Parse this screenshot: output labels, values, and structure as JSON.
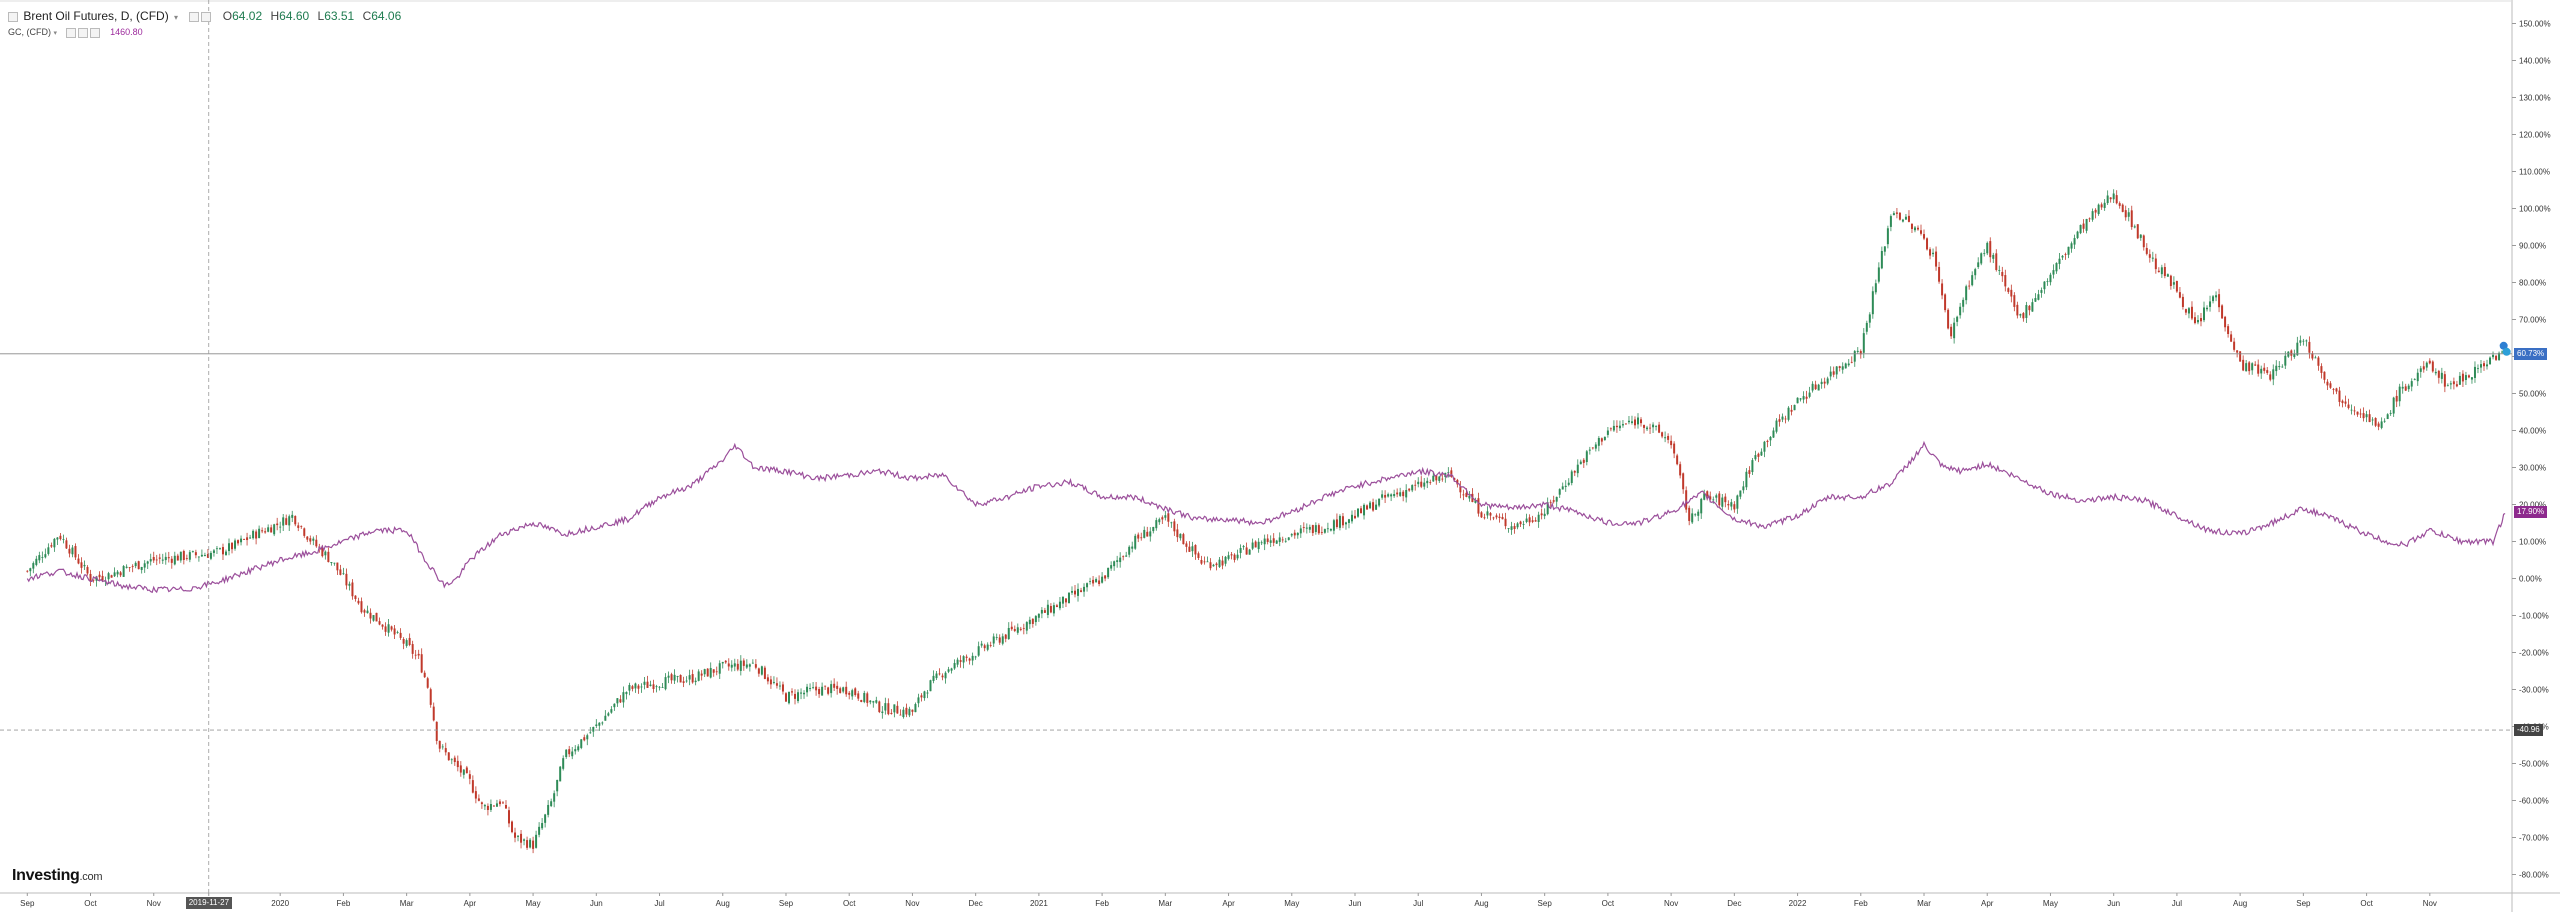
{
  "legend": {
    "title": "Brent Oil Futures, D, (CFD)",
    "open_label": "O",
    "open": "64.02",
    "high_label": "H",
    "high": "64.60",
    "low_label": "L",
    "low": "63.51",
    "close_label": "C",
    "close": "64.06",
    "secondary": "GC, (CFD)",
    "secondary_value": "1460.80",
    "dropdown_icon": "chevron-down-icon"
  },
  "branding": {
    "logo_text": "Investing",
    "logo_domain": ".com"
  },
  "colors": {
    "up": "#2e8b57",
    "down": "#c0392b",
    "compare": "#9b4f9b",
    "crosshair": "#999999",
    "badge_blue": "#3a6fc4",
    "badge_purple": "#8e2a8e",
    "badge_dark": "#444444"
  },
  "badges": {
    "brent_pct": "60.73%",
    "gc_pct": "17.90%",
    "crosshair_pct": "-40.96",
    "crosshair_date": "2019-11-27"
  },
  "chart_data": {
    "type": "line",
    "title": "Brent Oil Futures, D, (CFD)",
    "y_unit": "%",
    "ylim": [
      -85,
      155
    ],
    "y_ticks": [
      150,
      140,
      130,
      120,
      110,
      100,
      90,
      80,
      70,
      60,
      50,
      40,
      30,
      20,
      10,
      0,
      -10,
      -20,
      -30,
      -40,
      -50,
      -60,
      -70,
      -80
    ],
    "x_labels": [
      "Sep",
      "Oct",
      "Nov",
      "2019-11-27",
      "2020",
      "Feb",
      "Mar",
      "Apr",
      "May",
      "Jun",
      "Jul",
      "Aug",
      "Sep",
      "Oct",
      "Nov",
      "Dec",
      "2021",
      "Feb",
      "Mar",
      "Apr",
      "May",
      "Jun",
      "Jul",
      "Aug",
      "Sep",
      "Oct",
      "Nov",
      "Dec",
      "2022",
      "Feb",
      "Mar",
      "Apr",
      "May",
      "Jun",
      "Jul",
      "Aug",
      "Sep",
      "Oct",
      "Nov"
    ],
    "x_label_months": [
      0,
      1,
      2,
      2.87,
      4,
      5,
      6,
      7,
      8,
      9,
      10,
      11,
      12,
      13,
      14,
      15,
      16,
      17,
      18,
      19,
      20,
      21,
      22,
      23,
      24,
      25,
      26,
      27,
      28,
      29,
      30,
      31,
      32,
      33,
      34,
      35,
      36,
      37,
      38
    ],
    "x_months_range": [
      -0.4,
      39.3
    ],
    "grid": false,
    "series": [
      {
        "name": "Brent Oil Futures, D, (CFD)",
        "style": "candlestick",
        "x_months": [
          0,
          0.5,
          0.8,
          1,
          1.3,
          1.6,
          2,
          2.5,
          3,
          3.3,
          3.6,
          4,
          4.2,
          4.5,
          4.8,
          5,
          5.3,
          5.6,
          6,
          6.2,
          6.35,
          6.5,
          7,
          7.2,
          7.5,
          7.7,
          8,
          8.3,
          8.5,
          9,
          9.5,
          10,
          10.5,
          11,
          11.5,
          12,
          12.5,
          13,
          13.5,
          14,
          14.2,
          14.5,
          15,
          15.5,
          16,
          16.5,
          17,
          17.5,
          18,
          18.3,
          18.6,
          19,
          19.5,
          20,
          20.5,
          21,
          21.5,
          22,
          22.5,
          23,
          23.5,
          24,
          24.5,
          25,
          25.5,
          26,
          26.3,
          26.5,
          27,
          27.3,
          27.6,
          28,
          28.5,
          29,
          29.5,
          30,
          30.2,
          30.4,
          30.7,
          31,
          31.5,
          32,
          32.5,
          33,
          33.3,
          33.6,
          34,
          34.3,
          34.6,
          35,
          35.5,
          36,
          36.5,
          37,
          37.2,
          37.5,
          38,
          38.3,
          38.6,
          39,
          39.2
        ],
        "values": [
          2,
          12,
          5,
          0,
          1,
          3,
          5,
          6,
          7,
          9,
          12,
          15,
          17,
          10,
          5,
          0,
          -8,
          -12,
          -18,
          -22,
          -30,
          -45,
          -55,
          -62,
          -60,
          -70,
          -72,
          -60,
          -48,
          -40,
          -30,
          -28,
          -27,
          -24,
          -23,
          -32,
          -30,
          -30,
          -35,
          -36,
          -30,
          -25,
          -20,
          -15,
          -10,
          -5,
          0,
          10,
          16,
          10,
          4,
          5,
          10,
          12,
          14,
          17,
          22,
          25,
          28,
          18,
          14,
          18,
          30,
          40,
          43,
          37,
          15,
          22,
          20,
          32,
          40,
          48,
          55,
          62,
          100,
          92,
          85,
          65,
          80,
          90,
          70,
          82,
          95,
          104,
          96,
          86,
          78,
          68,
          77,
          58,
          55,
          65,
          50,
          44,
          40,
          50,
          58,
          52,
          55,
          60,
          61
        ],
        "last_value": 60.73
      },
      {
        "name": "GC, (CFD)",
        "style": "line",
        "x_months": [
          0,
          0.5,
          1,
          1.5,
          2,
          2.5,
          3,
          3.5,
          4,
          4.5,
          5,
          5.5,
          6,
          6.3,
          6.6,
          6.8,
          7,
          7.5,
          8,
          8.5,
          9,
          9.5,
          10,
          10.5,
          11,
          11.2,
          11.5,
          12,
          12.5,
          13,
          13.5,
          14,
          14.5,
          15,
          15.5,
          16,
          16.5,
          17,
          17.5,
          18,
          18.5,
          19,
          19.5,
          20,
          20.5,
          21,
          21.5,
          22,
          22.5,
          23,
          23.5,
          24,
          24.5,
          25,
          25.5,
          26,
          26.5,
          27,
          27.5,
          28,
          28.5,
          29,
          29.5,
          30,
          30.3,
          30.6,
          31,
          31.5,
          32,
          32.5,
          33,
          33.5,
          34,
          34.5,
          35,
          35.5,
          36,
          36.5,
          37,
          37.3,
          37.6,
          38,
          38.5,
          39,
          39.2
        ],
        "values": [
          0,
          2,
          0,
          -2,
          -3,
          -3,
          -1,
          2,
          5,
          7,
          10,
          13,
          13,
          5,
          -2,
          0,
          5,
          12,
          15,
          12,
          14,
          16,
          22,
          25,
          32,
          36,
          30,
          29,
          27,
          28,
          29,
          27,
          28,
          20,
          22,
          25,
          26,
          22,
          22,
          19,
          16,
          16,
          15,
          18,
          22,
          25,
          27,
          29,
          28,
          20,
          19,
          20,
          18,
          15,
          15,
          18,
          23,
          16,
          14,
          17,
          22,
          22,
          26,
          36,
          30,
          29,
          31,
          27,
          23,
          21,
          22,
          21,
          17,
          13,
          12,
          15,
          19,
          16,
          12,
          10,
          9,
          13,
          10,
          10,
          18
        ],
        "last_value": 17.9
      }
    ]
  }
}
